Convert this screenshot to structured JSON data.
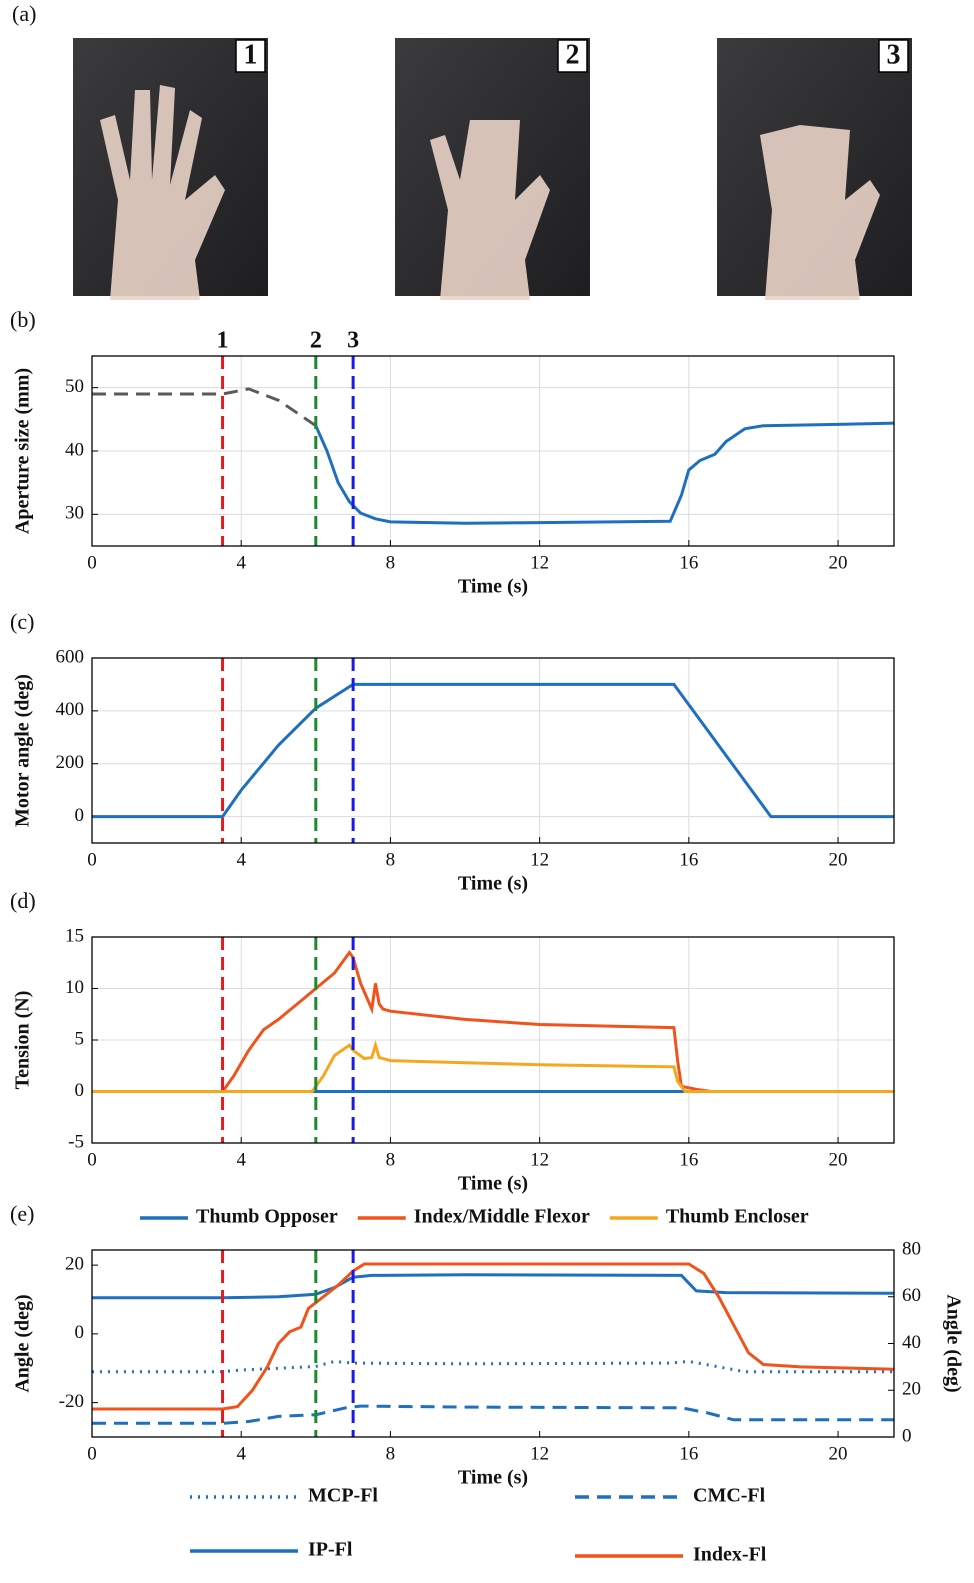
{
  "photo_panel": "(a)",
  "photos": [
    {
      "label": "1",
      "color": "#e8191e"
    },
    {
      "label": "2",
      "color": "#1a8a2e"
    },
    {
      "label": "3",
      "color": "#1a1ae6"
    }
  ],
  "chart_data": [
    {
      "type": "line",
      "panel": "(b)",
      "xlabel": "Time (s)",
      "ylabel": "Aperture size (mm)",
      "xlim": [
        0,
        21.5
      ],
      "xticks": [
        0,
        4,
        8,
        12,
        16,
        20
      ],
      "ylim": [
        25,
        55
      ],
      "yticks": [
        30,
        40,
        50
      ],
      "grid": true,
      "markers": [
        {
          "x": 3.5,
          "label": "1",
          "color": "#e8191e"
        },
        {
          "x": 6,
          "label": "2",
          "color": "#1a8a2e"
        },
        {
          "x": 7,
          "label": "3",
          "color": "#1a1ae6"
        }
      ],
      "series": [
        {
          "color": "#5a5a5a",
          "style": "dashed",
          "x": [
            0,
            3.5,
            4.2,
            5,
            6
          ],
          "values": [
            49,
            49,
            49.8,
            48,
            44
          ]
        },
        {
          "color": "#1f6fc0",
          "style": "solid",
          "x": [
            6,
            6.3,
            6.6,
            6.9,
            7.2,
            7.6,
            8,
            10,
            12,
            15.5,
            15.8,
            16,
            16.3,
            16.7,
            17,
            17.5,
            18,
            20,
            21.5
          ],
          "values": [
            44,
            40,
            35,
            32,
            30.2,
            29.3,
            28.8,
            28.6,
            28.7,
            28.9,
            33,
            37,
            38.5,
            39.5,
            41.5,
            43.5,
            44,
            44.2,
            44.4
          ]
        }
      ]
    },
    {
      "type": "line",
      "panel": "(c)",
      "xlabel": "Time (s)",
      "ylabel": "Motor angle (deg)",
      "xlim": [
        0,
        21.5
      ],
      "xticks": [
        0,
        4,
        8,
        12,
        16,
        20
      ],
      "ylim": [
        -100,
        600
      ],
      "yticks": [
        0,
        200,
        400,
        600
      ],
      "grid": true,
      "markers": [
        {
          "x": 3.5,
          "color": "#e8191e"
        },
        {
          "x": 6,
          "color": "#1a8a2e"
        },
        {
          "x": 7,
          "color": "#1a1ae6"
        }
      ],
      "series": [
        {
          "color": "#1f6fc0",
          "style": "solid",
          "x": [
            0,
            3.5,
            4,
            5,
            6,
            7,
            15.6,
            18.2,
            21.5
          ],
          "values": [
            0,
            0,
            100,
            270,
            410,
            500,
            500,
            0,
            0
          ]
        }
      ]
    },
    {
      "type": "line",
      "panel": "(d)",
      "xlabel": "Time (s)",
      "ylabel": "Tension (N)",
      "xlim": [
        0,
        21.5
      ],
      "xticks": [
        0,
        4,
        8,
        12,
        16,
        20
      ],
      "ylim": [
        -5,
        15
      ],
      "yticks": [
        -5,
        0,
        5,
        10,
        15
      ],
      "grid": true,
      "markers": [
        {
          "x": 3.5,
          "color": "#e8191e"
        },
        {
          "x": 6,
          "color": "#1a8a2e"
        },
        {
          "x": 7,
          "color": "#1a1ae6"
        }
      ],
      "series": [
        {
          "name": "Thumb Opposer",
          "color": "#1f6fc0",
          "style": "solid",
          "x": [
            0,
            21.5
          ],
          "values": [
            0,
            0
          ]
        },
        {
          "name": "Index/Middle Flexor",
          "color": "#f0531c",
          "style": "solid",
          "x": [
            0,
            3.5,
            3.8,
            4.2,
            4.6,
            5,
            5.5,
            6,
            6.5,
            6.9,
            7,
            7.2,
            7.5,
            7.6,
            7.7,
            7.8,
            8,
            10,
            12,
            15.6,
            15.7,
            15.8,
            16.2,
            16.6,
            21.5
          ],
          "values": [
            0,
            0,
            1.5,
            4,
            6,
            7,
            8.5,
            10,
            11.5,
            13.5,
            13,
            10.5,
            8,
            10.5,
            8.5,
            8,
            7.8,
            7,
            6.5,
            6.2,
            3,
            0.5,
            0.2,
            0,
            0
          ]
        },
        {
          "name": "Thumb Encloser",
          "color": "#f5a81c",
          "style": "solid",
          "x": [
            0,
            5.9,
            6.2,
            6.5,
            6.9,
            7,
            7.3,
            7.5,
            7.6,
            7.7,
            8,
            10,
            12,
            15.6,
            15.7,
            15.9,
            21.5
          ],
          "values": [
            0,
            0,
            1.5,
            3.5,
            4.5,
            4,
            3.2,
            3.3,
            4.5,
            3.3,
            3,
            2.8,
            2.6,
            2.4,
            1,
            0,
            0
          ]
        }
      ]
    },
    {
      "type": "line",
      "panel": "(e)",
      "xlabel": "Time (s)",
      "ylabel": "Angle (deg)",
      "y2label": "Angle (deg)",
      "ylabel_color": "#1f8ad0",
      "y2label_color": "#f0531c",
      "xlim": [
        0,
        21.5
      ],
      "xticks": [
        0,
        4,
        8,
        12,
        16,
        20
      ],
      "ylim": [
        -30,
        24.4
      ],
      "yticks": [
        -20,
        0,
        20
      ],
      "y2lim": [
        0,
        80
      ],
      "y2ticks": [
        0,
        20,
        40,
        60,
        80
      ],
      "grid": false,
      "markers": [
        {
          "x": 3.5,
          "color": "#e8191e"
        },
        {
          "x": 6,
          "color": "#1a8a2e"
        },
        {
          "x": 7,
          "color": "#1a1ae6"
        }
      ],
      "series": [
        {
          "name": "MCP-Fl",
          "color": "#1f6fc0",
          "style": "dotted",
          "x": [
            0,
            3.5,
            4,
            5,
            6,
            6.5,
            7,
            10,
            15.5,
            16,
            16.5,
            17.5,
            21.5
          ],
          "values": [
            -11,
            -11,
            -10.5,
            -10,
            -9.5,
            -8,
            -8.5,
            -8.7,
            -8.5,
            -8,
            -9,
            -11,
            -11
          ]
        },
        {
          "name": "IP-Fl",
          "color": "#1f6fc0",
          "style": "solid",
          "x": [
            0,
            3.5,
            5,
            6,
            6.5,
            7,
            7.5,
            10,
            15.8,
            16.2,
            17,
            21.5
          ],
          "values": [
            10.5,
            10.5,
            10.8,
            11.5,
            13.5,
            16.5,
            17,
            17.2,
            17,
            12.5,
            12,
            11.8
          ]
        },
        {
          "name": "CMC-Fl",
          "color": "#1f6fc0",
          "style": "dashed",
          "x": [
            0,
            3.5,
            4.2,
            5,
            6,
            6.8,
            7.2,
            10,
            15.8,
            16.5,
            17.2,
            21.5
          ],
          "values": [
            -26,
            -26,
            -25.5,
            -24,
            -23.5,
            -21.5,
            -21,
            -21.3,
            -21.5,
            -23,
            -25,
            -25
          ]
        },
        {
          "name": "Index-Fl",
          "color": "#f0531c",
          "style": "solid",
          "axis": "y2",
          "x": [
            0,
            3.5,
            3.9,
            4.3,
            4.7,
            5,
            5.3,
            5.6,
            5.8,
            6.2,
            6.6,
            7,
            7.3,
            10,
            16,
            16.4,
            16.8,
            17.2,
            17.6,
            18,
            19,
            21.5
          ],
          "values": [
            12,
            12,
            13,
            20,
            30,
            40,
            45,
            47,
            55,
            60,
            65,
            71,
            74,
            74,
            74,
            70,
            60,
            48,
            36,
            31,
            30,
            29
          ]
        }
      ]
    }
  ]
}
